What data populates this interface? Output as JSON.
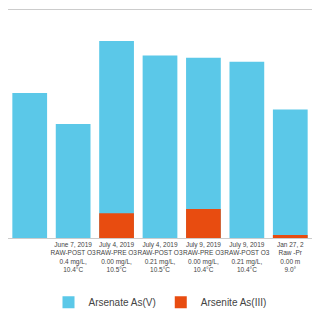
{
  "chart_data": {
    "type": "bar",
    "categories": [
      null,
      "June 7, 2019\nRAW-POST O3\n0.4 mg/L,\n10.4°C",
      "July 4, 2019\nRAW-PRE O3\n0.00 mg/L,\n10.5°C",
      "July 4, 2019\nRAW-POST O3\n0.21 mg/L,\n10.5°C",
      "July 9, 2019\nRAW-PRE O3\n0.00 mg/L,\n10.4°C",
      "July 9, 2019\nRAW-POST O3\n0.21 mg/L,\n10.4°C",
      "Jan 27, 2\nRaw -Pr\n0.00 m\n9.0°"
    ],
    "series": [
      {
        "name": "Arsenate As(V)",
        "color": "#5bc8e8",
        "values": [
          7.0,
          5.5,
          9.5,
          8.8,
          8.7,
          8.5,
          6.2
        ]
      },
      {
        "name": "Arsenite As(III)",
        "color": "#e84c10",
        "values": [
          0.0,
          0.0,
          1.2,
          0.0,
          1.4,
          0.0,
          0.15
        ]
      }
    ],
    "ylim": [
      0,
      11
    ],
    "stacked": false,
    "grid": false,
    "tick_labels": "x",
    "legend": "bottom"
  }
}
